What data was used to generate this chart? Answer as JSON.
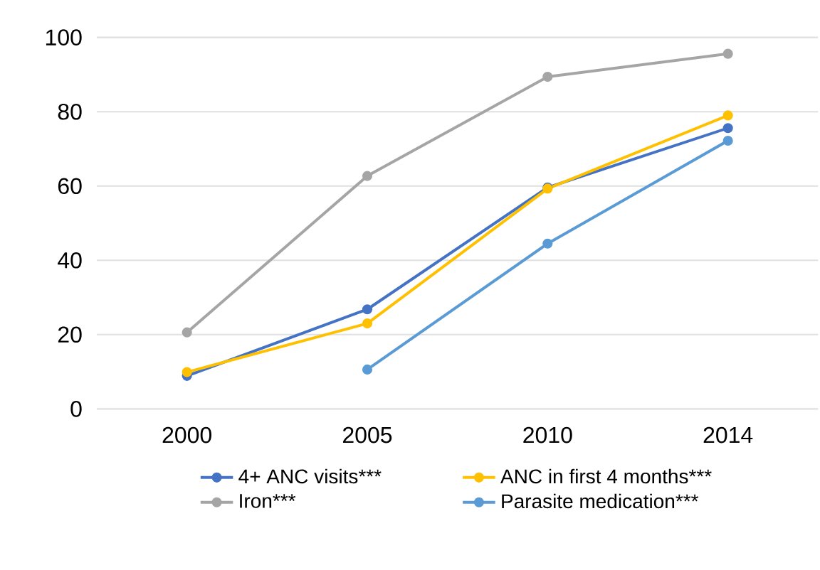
{
  "chart_data": {
    "type": "line",
    "categories": [
      "2000",
      "2005",
      "2010",
      "2014"
    ],
    "series": [
      {
        "name": "4+ ANC visits***",
        "color": "#4472c4",
        "values": [
          8.9,
          26.8,
          59.6,
          75.6
        ]
      },
      {
        "name": "ANC in first 4 months***",
        "color": "#ffc000",
        "values": [
          9.9,
          23.0,
          59.3,
          79.0
        ]
      },
      {
        "name": "Iron***",
        "color": "#a5a5a5",
        "values": [
          20.6,
          62.7,
          89.4,
          95.6
        ]
      },
      {
        "name": "Parasite medication***",
        "color": "#5b9bd5",
        "values": [
          null,
          10.6,
          44.5,
          72.2
        ]
      }
    ],
    "ylim": [
      0,
      100
    ],
    "yticks": [
      0,
      20,
      40,
      60,
      80,
      100
    ],
    "grid": "y",
    "legend": "bottom",
    "marker": "circle",
    "line_style": "solid"
  }
}
